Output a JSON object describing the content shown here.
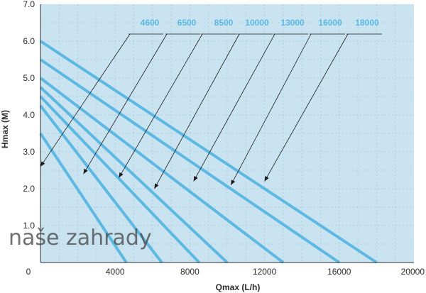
{
  "chart_data": {
    "type": "line",
    "xlabel": "Qmax (L/h)",
    "ylabel": "Hmax (M)",
    "xlim": [
      0,
      20000
    ],
    "ylim": [
      0,
      7.0
    ],
    "x_ticks": [
      "0",
      "4000",
      "8000",
      "12000",
      "16000",
      "20000"
    ],
    "x_tick_values": [
      0,
      4000,
      8000,
      12000,
      16000,
      20000
    ],
    "y_ticks": [
      "1.0",
      "2.0",
      "3.0",
      "4.0",
      "5.0",
      "6.0",
      "7.0"
    ],
    "y_tick_values": [
      1,
      2,
      3,
      4,
      5,
      6,
      7
    ],
    "grid": true,
    "background_color": "#c9e3f1",
    "line_color": "#5db8e2",
    "label_color": "#5db8e2",
    "series": [
      {
        "name": "4600",
        "x": [
          0,
          4600
        ],
        "y": [
          3.5,
          0
        ]
      },
      {
        "name": "6500",
        "x": [
          0,
          6500
        ],
        "y": [
          4.25,
          0
        ]
      },
      {
        "name": "8500",
        "x": [
          0,
          8500
        ],
        "y": [
          4.5,
          0
        ]
      },
      {
        "name": "10000",
        "x": [
          0,
          10000
        ],
        "y": [
          4.75,
          0
        ]
      },
      {
        "name": "13000",
        "x": [
          0,
          13000
        ],
        "y": [
          5.0,
          0
        ]
      },
      {
        "name": "16000",
        "x": [
          0,
          16000
        ],
        "y": [
          5.5,
          0
        ]
      },
      {
        "name": "18000",
        "x": [
          0,
          18000
        ],
        "y": [
          6.0,
          0
        ]
      }
    ],
    "annotations": [
      {
        "label": "4600",
        "arrow_to": [
          0,
          2.6
        ]
      },
      {
        "label": "6500",
        "arrow_to": [
          2300,
          2.4
        ]
      },
      {
        "label": "8500",
        "arrow_to": [
          4200,
          2.3
        ]
      },
      {
        "label": "10000",
        "arrow_to": [
          6100,
          2.0
        ]
      },
      {
        "label": "13000",
        "arrow_to": [
          8200,
          2.2
        ]
      },
      {
        "label": "16000",
        "arrow_to": [
          10200,
          2.1
        ]
      },
      {
        "label": "18000",
        "arrow_to": [
          12000,
          2.2
        ]
      }
    ]
  },
  "watermark": "naše zahrady"
}
